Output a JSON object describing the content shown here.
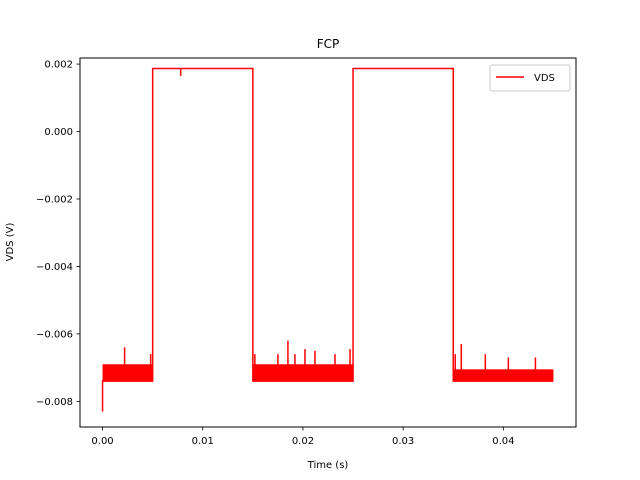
{
  "chart_data": {
    "type": "line",
    "title": "FCP",
    "xlabel": "Time (s)",
    "ylabel": "VDS (V)",
    "xlim": [
      -0.00225,
      0.04725
    ],
    "ylim": [
      -0.00876,
      0.00218
    ],
    "xticks": [
      0.0,
      0.01,
      0.02,
      0.03,
      0.04
    ],
    "xtick_labels": [
      "0.00",
      "0.01",
      "0.02",
      "0.03",
      "0.04"
    ],
    "yticks": [
      0.002,
      0.0,
      -0.002,
      -0.004,
      -0.006,
      -0.008
    ],
    "ytick_labels": [
      "0.002",
      "0.000",
      "−0.002",
      "−0.004",
      "−0.006",
      "−0.008"
    ],
    "grid": false,
    "legend": {
      "placement": "top-right",
      "entries": [
        {
          "name": "VDS",
          "color": "#ff0000"
        }
      ]
    },
    "series": [
      {
        "name": "VDS",
        "color": "#ff0000",
        "x": [
          0.0,
          0.0,
          0.005,
          0.005,
          0.0078,
          0.0078,
          0.0078,
          0.015,
          0.015,
          0.025,
          0.025,
          0.035,
          0.035,
          0.045
        ],
        "y": [
          -0.0083,
          -0.0074,
          -0.0074,
          0.00187,
          0.00187,
          0.00165,
          0.00187,
          0.00187,
          -0.0074,
          -0.0074,
          0.00187,
          0.00187,
          -0.0074,
          -0.0074
        ]
      }
    ],
    "noise_bands": [
      {
        "x": [
          0.0,
          0.005
        ],
        "y": [
          -0.0074,
          -0.0069
        ]
      },
      {
        "x": [
          0.015,
          0.025
        ],
        "y": [
          -0.0074,
          -0.0069
        ]
      },
      {
        "x": [
          0.035,
          0.045
        ],
        "y": [
          -0.0074,
          -0.00705
        ]
      }
    ],
    "noise_spikes": [
      {
        "x": 0.0022,
        "y": -0.0064
      },
      {
        "x": 0.0048,
        "y": -0.0066
      },
      {
        "x": 0.0152,
        "y": -0.0066
      },
      {
        "x": 0.0175,
        "y": -0.0066
      },
      {
        "x": 0.0185,
        "y": -0.0062
      },
      {
        "x": 0.0192,
        "y": -0.0066
      },
      {
        "x": 0.0202,
        "y": -0.00645
      },
      {
        "x": 0.0212,
        "y": -0.0065
      },
      {
        "x": 0.0232,
        "y": -0.0066
      },
      {
        "x": 0.0247,
        "y": -0.00645
      },
      {
        "x": 0.0352,
        "y": -0.0066
      },
      {
        "x": 0.0358,
        "y": -0.0063
      },
      {
        "x": 0.0382,
        "y": -0.0066
      },
      {
        "x": 0.0405,
        "y": -0.0067
      },
      {
        "x": 0.0432,
        "y": -0.0067
      }
    ]
  }
}
